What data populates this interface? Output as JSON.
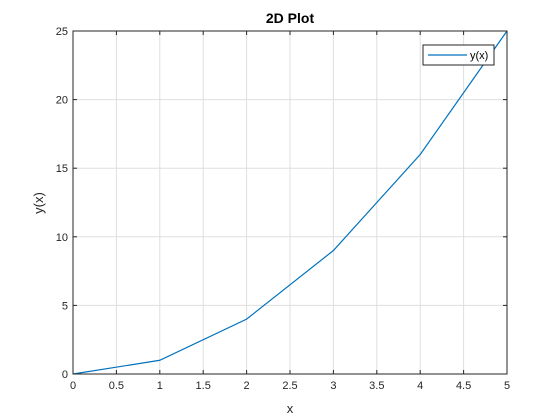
{
  "chart_data": {
    "type": "line",
    "title": "2D Plot",
    "xlabel": "x",
    "ylabel": "y(x)",
    "xlim": [
      0,
      5
    ],
    "ylim": [
      0,
      25
    ],
    "x_ticks": [
      "0",
      "0.5",
      "1",
      "1.5",
      "2",
      "2.5",
      "3",
      "3.5",
      "4",
      "4.5",
      "5"
    ],
    "y_ticks": [
      "0",
      "5",
      "10",
      "15",
      "20",
      "25"
    ],
    "grid": true,
    "legend_position": "top-right",
    "series": [
      {
        "name": "y(x)",
        "color": "#0072bd",
        "x": [
          0,
          1,
          2,
          3,
          4,
          5
        ],
        "y": [
          0,
          1,
          4,
          9,
          16,
          25
        ]
      }
    ]
  }
}
